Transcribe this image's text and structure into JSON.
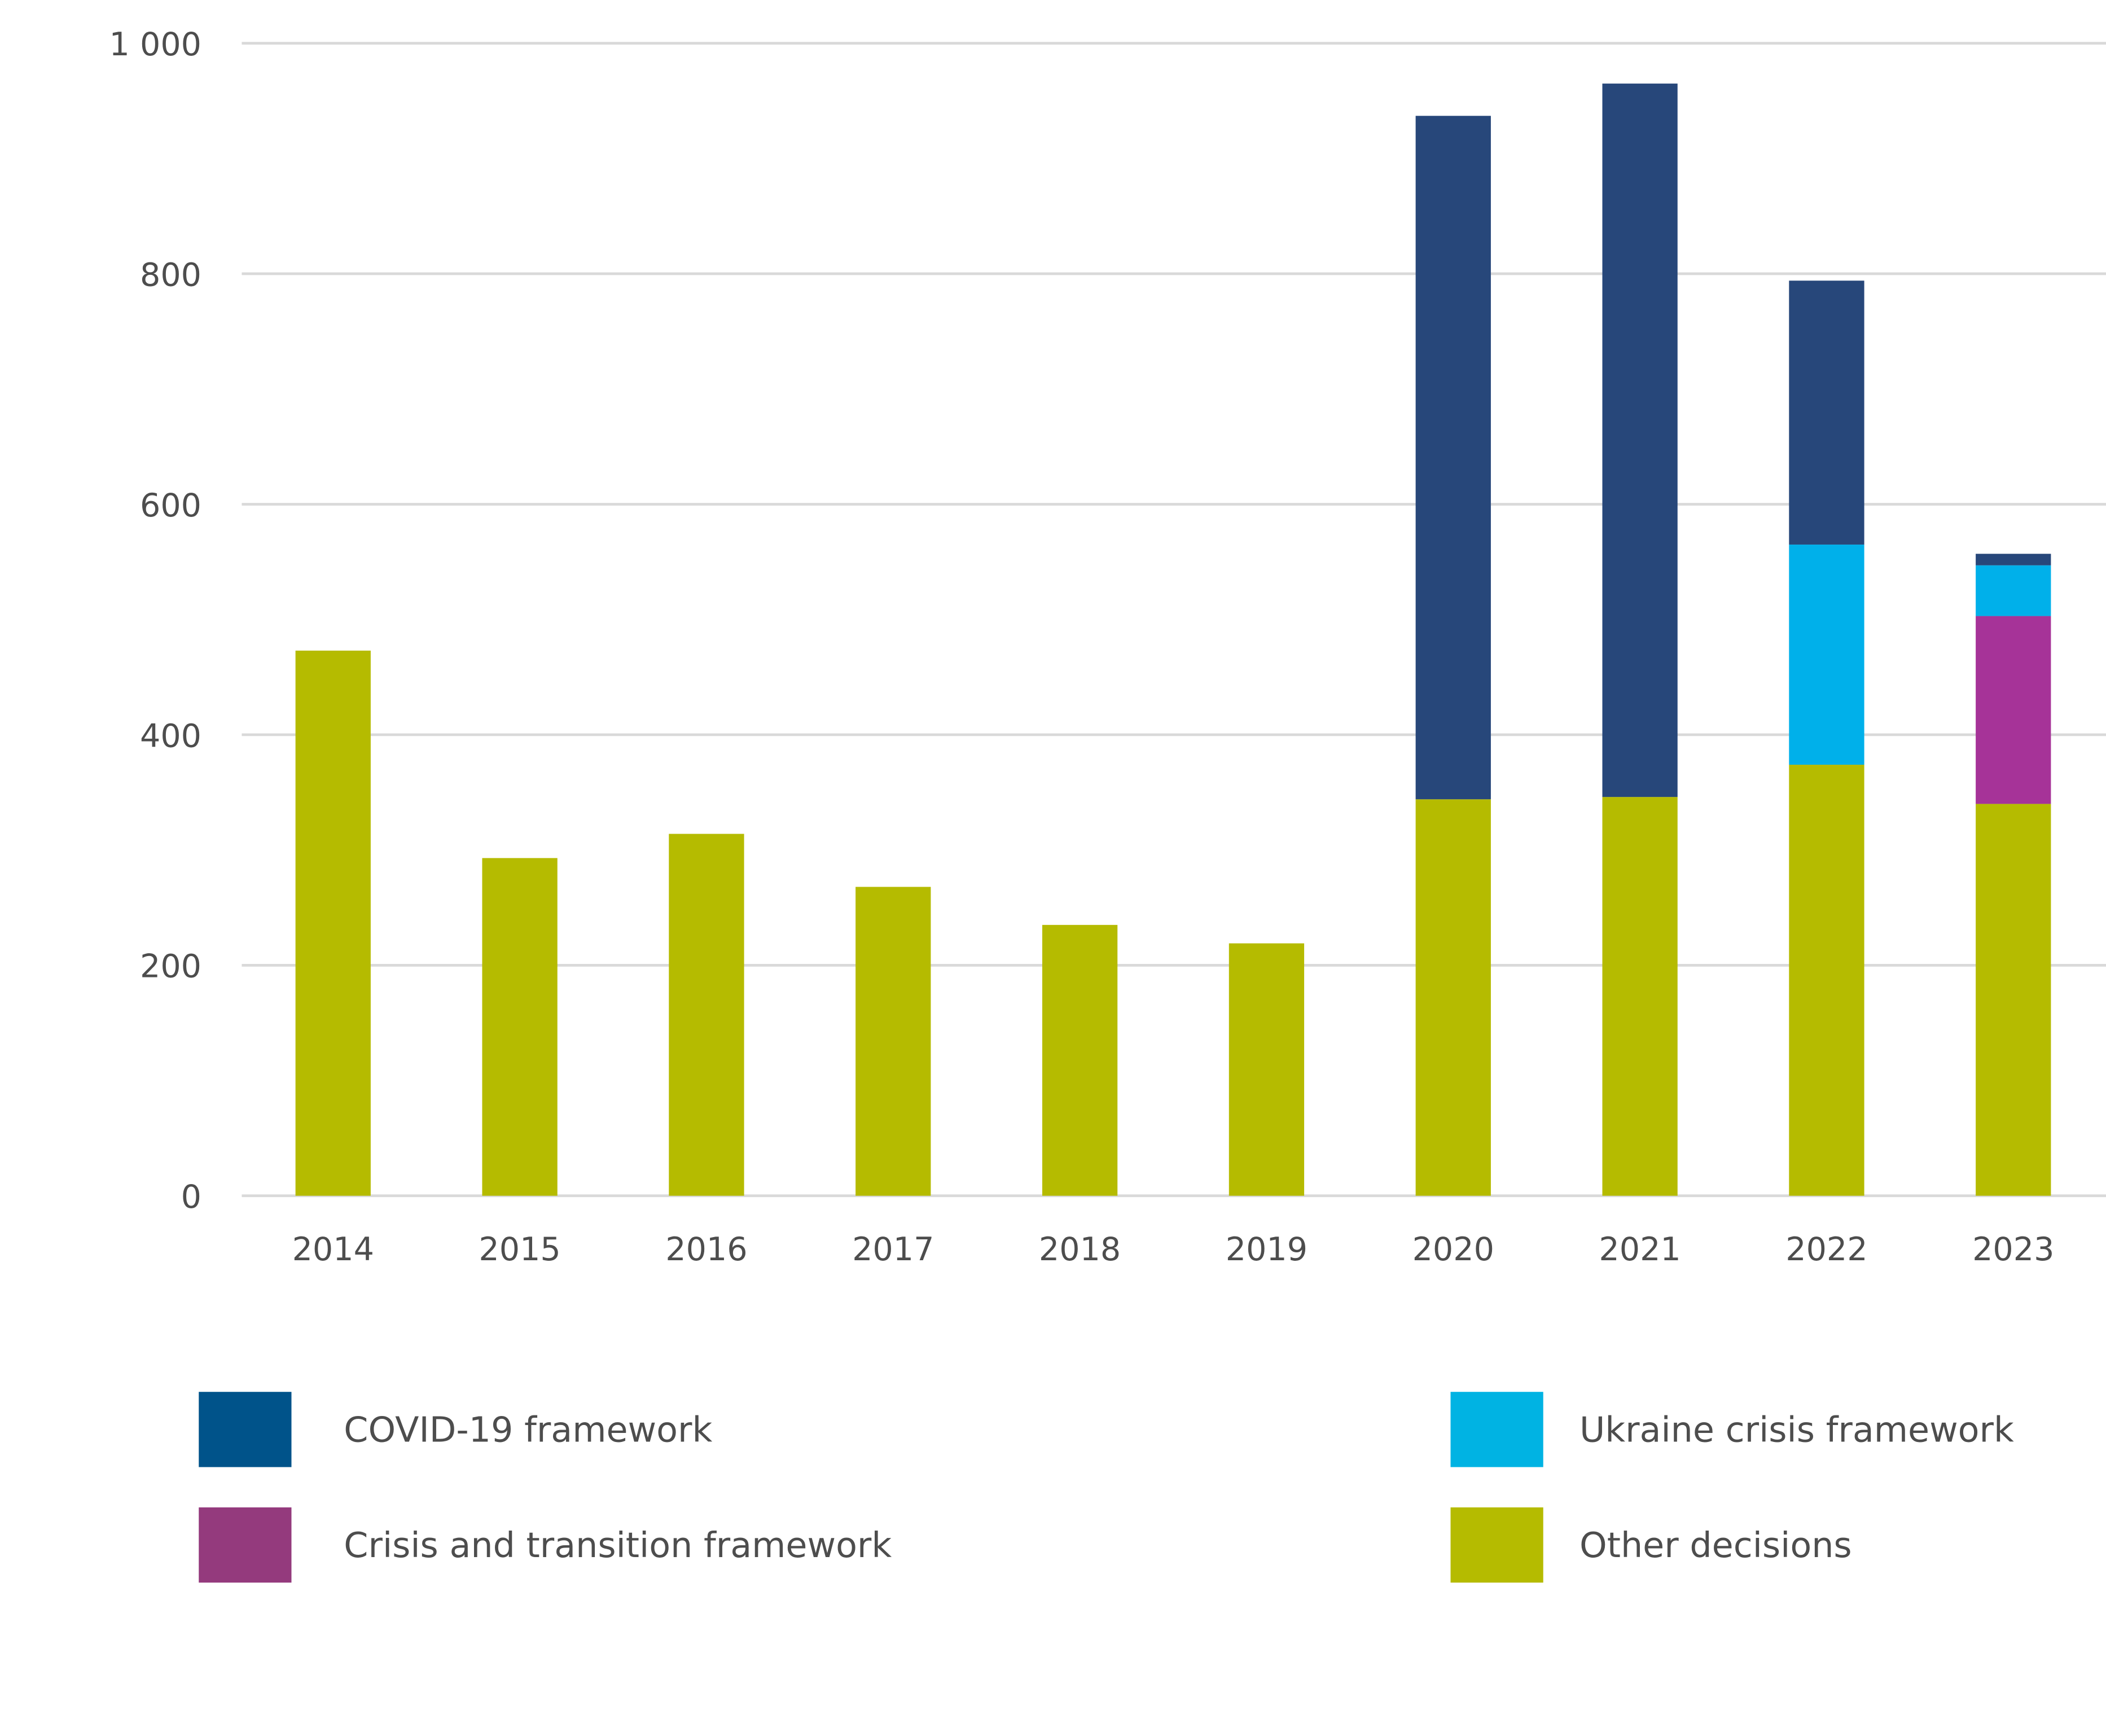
{
  "chart_data": {
    "type": "bar",
    "stacked": true,
    "categories": [
      "2014",
      "2015",
      "2016",
      "2017",
      "2018",
      "2019",
      "2020",
      "2021",
      "2022",
      "2023"
    ],
    "series": [
      {
        "name": "Other decisions",
        "color": "#b5bb00",
        "values": [
          473,
          293,
          314,
          268,
          235,
          219,
          344,
          346,
          374,
          340
        ]
      },
      {
        "name": "Crisis and transition framework",
        "color": "#a63398",
        "legend_color": "#943a7d",
        "values": [
          0,
          0,
          0,
          0,
          0,
          0,
          0,
          0,
          0,
          163
        ]
      },
      {
        "name": "Ukraine crisis framework",
        "color": "#00b0ea",
        "legend_color": "#00b3e3",
        "values": [
          0,
          0,
          0,
          0,
          0,
          0,
          0,
          0,
          191,
          44
        ]
      },
      {
        "name": "COVID-19 framework",
        "color": "#27477a",
        "legend_color": "#00538a",
        "values": [
          0,
          0,
          0,
          0,
          0,
          0,
          593,
          619,
          229,
          10
        ]
      }
    ],
    "yticks": [
      "0",
      "200",
      "400",
      "600",
      "800",
      "1 000"
    ],
    "ylim": [
      0,
      1000
    ],
    "grid": true,
    "title": "",
    "xlabel": "",
    "ylabel": "",
    "legend_position": "bottom",
    "legend_order": [
      "COVID-19 framework",
      "Ukraine crisis framework",
      "Crisis and transition framework",
      "Other decisions"
    ]
  }
}
